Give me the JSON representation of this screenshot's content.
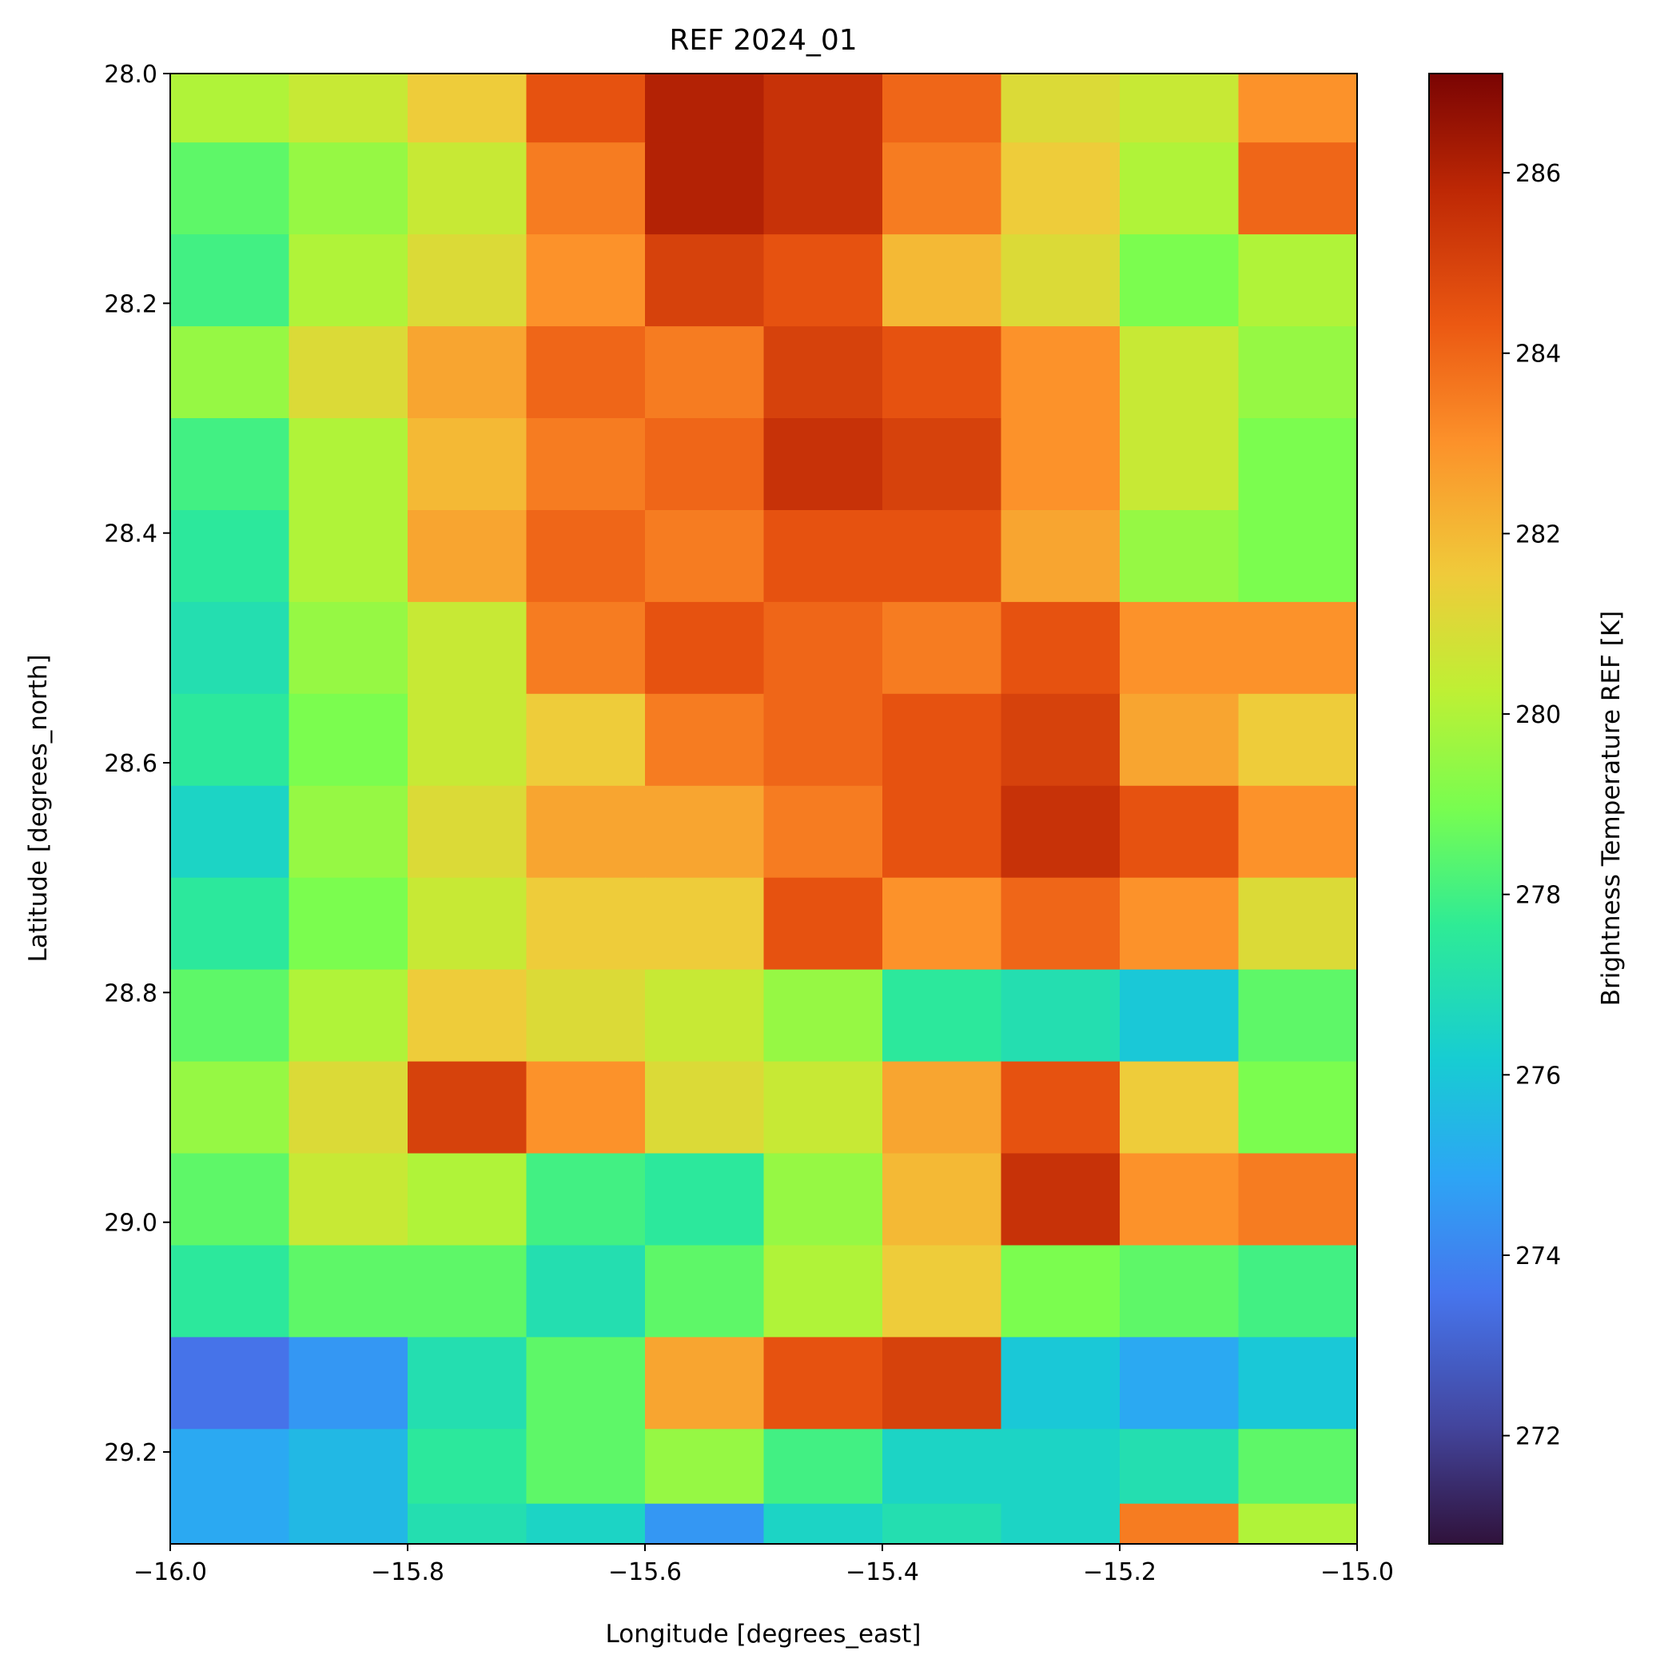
{
  "chart_data": {
    "type": "heatmap",
    "title": "REF 2024_01",
    "xlabel": "Longitude [degrees_east]",
    "ylabel": "Latitude [degrees_north]",
    "colorbar_label": "Brightness Temperature REF [K]",
    "xlim": [
      -16.0,
      -15.0
    ],
    "ylim": [
      28.0,
      29.28
    ],
    "y_inverted": true,
    "color_range": [
      270.8,
      287.1
    ],
    "colormap": "turbo",
    "grid": false,
    "xticks": [
      {
        "value": -16.0,
        "label": "−16.0"
      },
      {
        "value": -15.8,
        "label": "−15.8"
      },
      {
        "value": -15.6,
        "label": "−15.6"
      },
      {
        "value": -15.4,
        "label": "−15.4"
      },
      {
        "value": -15.2,
        "label": "−15.2"
      },
      {
        "value": -15.0,
        "label": "−15.0"
      }
    ],
    "yticks": [
      {
        "value": 28.0,
        "label": "28.0"
      },
      {
        "value": 28.2,
        "label": "28.2"
      },
      {
        "value": 28.4,
        "label": "28.4"
      },
      {
        "value": 28.6,
        "label": "28.6"
      },
      {
        "value": 28.8,
        "label": "28.8"
      },
      {
        "value": 29.0,
        "label": "29.0"
      },
      {
        "value": 29.2,
        "label": "29.2"
      }
    ],
    "colorbar_ticks": [
      {
        "value": 272,
        "label": "272"
      },
      {
        "value": 274,
        "label": "274"
      },
      {
        "value": 276,
        "label": "276"
      },
      {
        "value": 278,
        "label": "278"
      },
      {
        "value": 280,
        "label": "280"
      },
      {
        "value": 282,
        "label": "282"
      },
      {
        "value": 284,
        "label": "284"
      },
      {
        "value": 286,
        "label": "286"
      }
    ],
    "grid_lon": [
      -15.95,
      -15.85,
      -15.75,
      -15.65,
      -15.55,
      -15.45,
      -15.35,
      -15.25,
      -15.15,
      -15.05
    ],
    "grid_lat": [
      28.02,
      28.1,
      28.18,
      28.26,
      28.34,
      28.42,
      28.5,
      28.58,
      28.66,
      28.74,
      28.82,
      28.9,
      28.98,
      29.06,
      29.14,
      29.22,
      29.27
    ],
    "values": [
      [
        280.0,
        280.5,
        281.5,
        284.5,
        286.0,
        285.5,
        284.0,
        281.0,
        280.5,
        283.0
      ],
      [
        278.5,
        279.5,
        280.5,
        283.5,
        286.0,
        285.5,
        283.5,
        281.5,
        280.0,
        284.0
      ],
      [
        278.0,
        280.0,
        281.0,
        283.0,
        285.0,
        284.5,
        282.0,
        281.0,
        279.0,
        280.0
      ],
      [
        279.5,
        281.0,
        282.5,
        284.0,
        283.5,
        285.0,
        284.5,
        283.0,
        280.5,
        279.5
      ],
      [
        278.0,
        280.0,
        282.0,
        283.5,
        284.0,
        285.5,
        285.0,
        283.0,
        280.5,
        279.0
      ],
      [
        277.5,
        280.0,
        282.5,
        284.0,
        283.5,
        284.5,
        284.5,
        282.5,
        279.5,
        279.0
      ],
      [
        277.0,
        279.5,
        280.5,
        283.5,
        284.5,
        284.0,
        283.5,
        284.5,
        283.0,
        283.0
      ],
      [
        277.5,
        279.0,
        280.5,
        281.5,
        283.5,
        284.0,
        284.5,
        285.0,
        282.5,
        281.5
      ],
      [
        276.5,
        279.5,
        281.0,
        282.5,
        282.5,
        283.5,
        284.5,
        285.5,
        284.5,
        283.0
      ],
      [
        277.5,
        279.0,
        280.5,
        281.5,
        281.5,
        284.5,
        283.0,
        284.0,
        283.0,
        281.0
      ],
      [
        278.5,
        280.0,
        281.5,
        281.0,
        280.5,
        279.5,
        277.5,
        277.0,
        276.0,
        278.5
      ],
      [
        279.5,
        281.0,
        285.0,
        283.0,
        281.0,
        280.5,
        282.5,
        284.5,
        281.5,
        279.0
      ],
      [
        278.5,
        280.5,
        280.0,
        278.0,
        277.5,
        279.5,
        282.0,
        285.5,
        283.0,
        283.5
      ],
      [
        277.5,
        278.5,
        278.5,
        277.0,
        278.5,
        280.0,
        281.5,
        279.0,
        278.5,
        278.0
      ],
      [
        273.5,
        274.5,
        277.0,
        278.5,
        282.5,
        284.5,
        285.0,
        276.0,
        275.0,
        276.0
      ],
      [
        275.0,
        275.5,
        277.5,
        278.5,
        279.5,
        278.0,
        276.5,
        276.5,
        277.0,
        278.5
      ],
      [
        275.0,
        275.5,
        277.0,
        276.5,
        274.5,
        276.5,
        277.0,
        276.5,
        283.5,
        280.0
      ]
    ]
  }
}
